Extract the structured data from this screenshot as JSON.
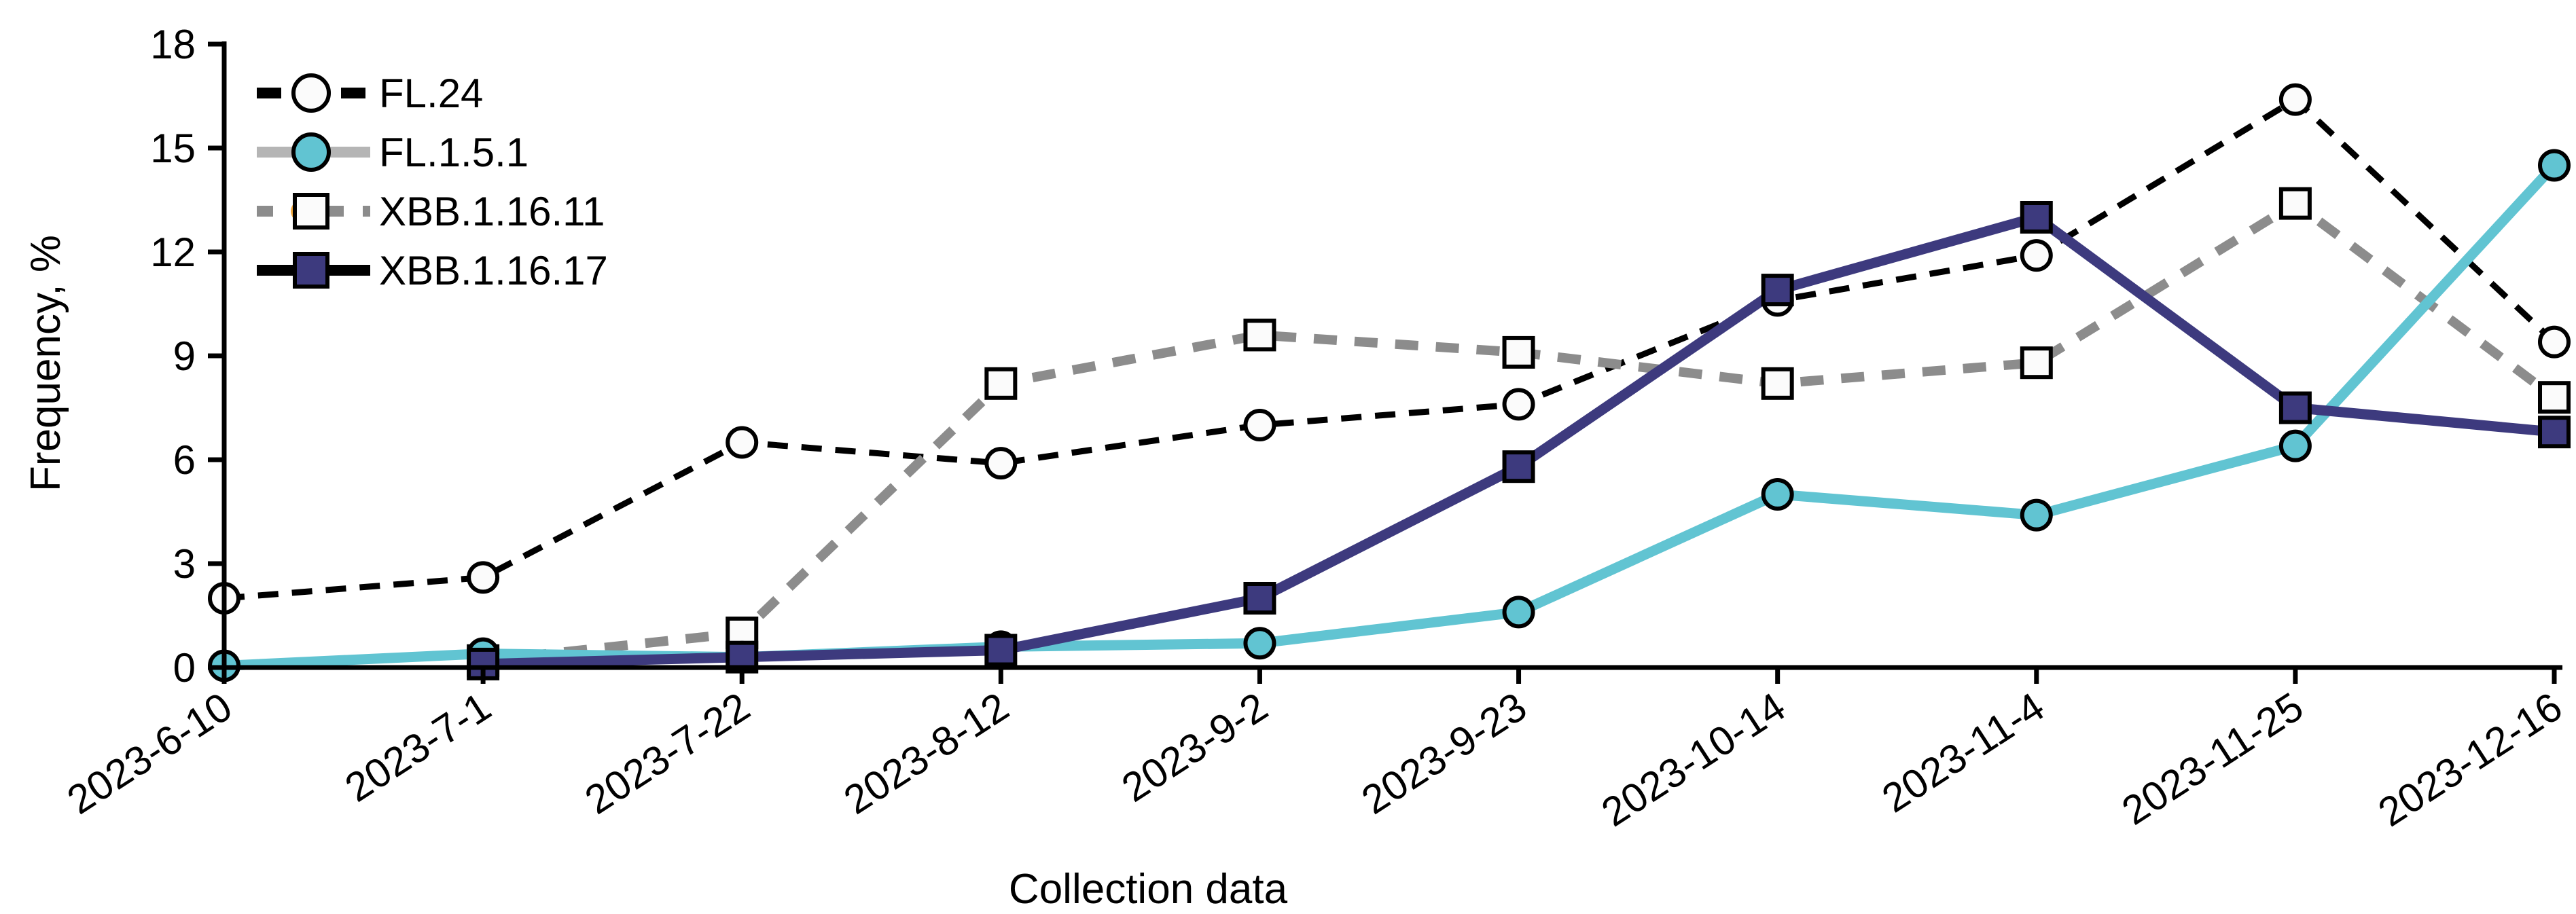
{
  "figure": {
    "background": "#ffffff"
  },
  "chart_data": {
    "type": "line",
    "title": "",
    "xlabel": "Collection data",
    "ylabel": "Frequency, %",
    "x_categories": [
      "2023-6-10",
      "2023-7-1",
      "2023-7-22",
      "2023-8-12",
      "2023-9-2",
      "2023-9-23",
      "2023-10-14",
      "2023-11-4",
      "2023-11-25",
      "2023-12-16"
    ],
    "ylim": [
      0,
      18
    ],
    "y_ticks": [
      0,
      3,
      6,
      9,
      12,
      15,
      18
    ],
    "grid": false,
    "legend_position": "upper-left-inside",
    "series": [
      {
        "name": "FL.24",
        "values": [
          2.0,
          2.6,
          6.5,
          5.9,
          7.0,
          7.6,
          10.6,
          11.9,
          16.4,
          9.4
        ],
        "line_color": "#000000",
        "line_style": "dashed",
        "line_width": 9,
        "dash": "30 20",
        "marker": "circle",
        "marker_fill": "#fbfbfb",
        "marker_edge": "#000000",
        "legend_line_color": "#000000",
        "legend_dash": "36 26",
        "z": 0
      },
      {
        "name": "FL.1.5.1",
        "values": [
          0.05,
          0.4,
          0.3,
          0.6,
          0.7,
          1.6,
          5.0,
          4.4,
          6.4,
          14.5
        ],
        "line_color": "#61c4d2",
        "line_style": "solid",
        "line_width": 15,
        "dash": "",
        "marker": "circle",
        "marker_fill": "#61c4d2",
        "marker_edge": "#000000",
        "legend_line_color": "#b5b5b5",
        "legend_dash": "",
        "z": 2
      },
      {
        "name": "XBB.1.16.11",
        "values": [
          null,
          0.2,
          1.0,
          8.2,
          9.6,
          9.1,
          8.2,
          8.8,
          13.4,
          7.8
        ],
        "line_color": "#8c8c8c",
        "line_style": "dashed",
        "line_width": 14,
        "dash": "34 26",
        "marker": "square",
        "marker_fill": "#fbfbfb",
        "marker_edge": "#000000",
        "legend_line_color": "#8c8c8c",
        "legend_dash": "24 28",
        "z": 1
      },
      {
        "name": "XBB.1.16.17",
        "values": [
          null,
          0.1,
          0.3,
          0.5,
          2.0,
          5.8,
          10.9,
          13.0,
          7.5,
          6.8
        ],
        "line_color": "#3d3a7e",
        "line_style": "solid",
        "line_width": 15,
        "dash": "",
        "marker": "square",
        "marker_fill": "#3d3a7e",
        "marker_edge": "#000000",
        "legend_line_color": "#000000",
        "legend_dash": "",
        "z": 3
      }
    ],
    "legend_hidden_marker_color": "#f0a73c"
  }
}
